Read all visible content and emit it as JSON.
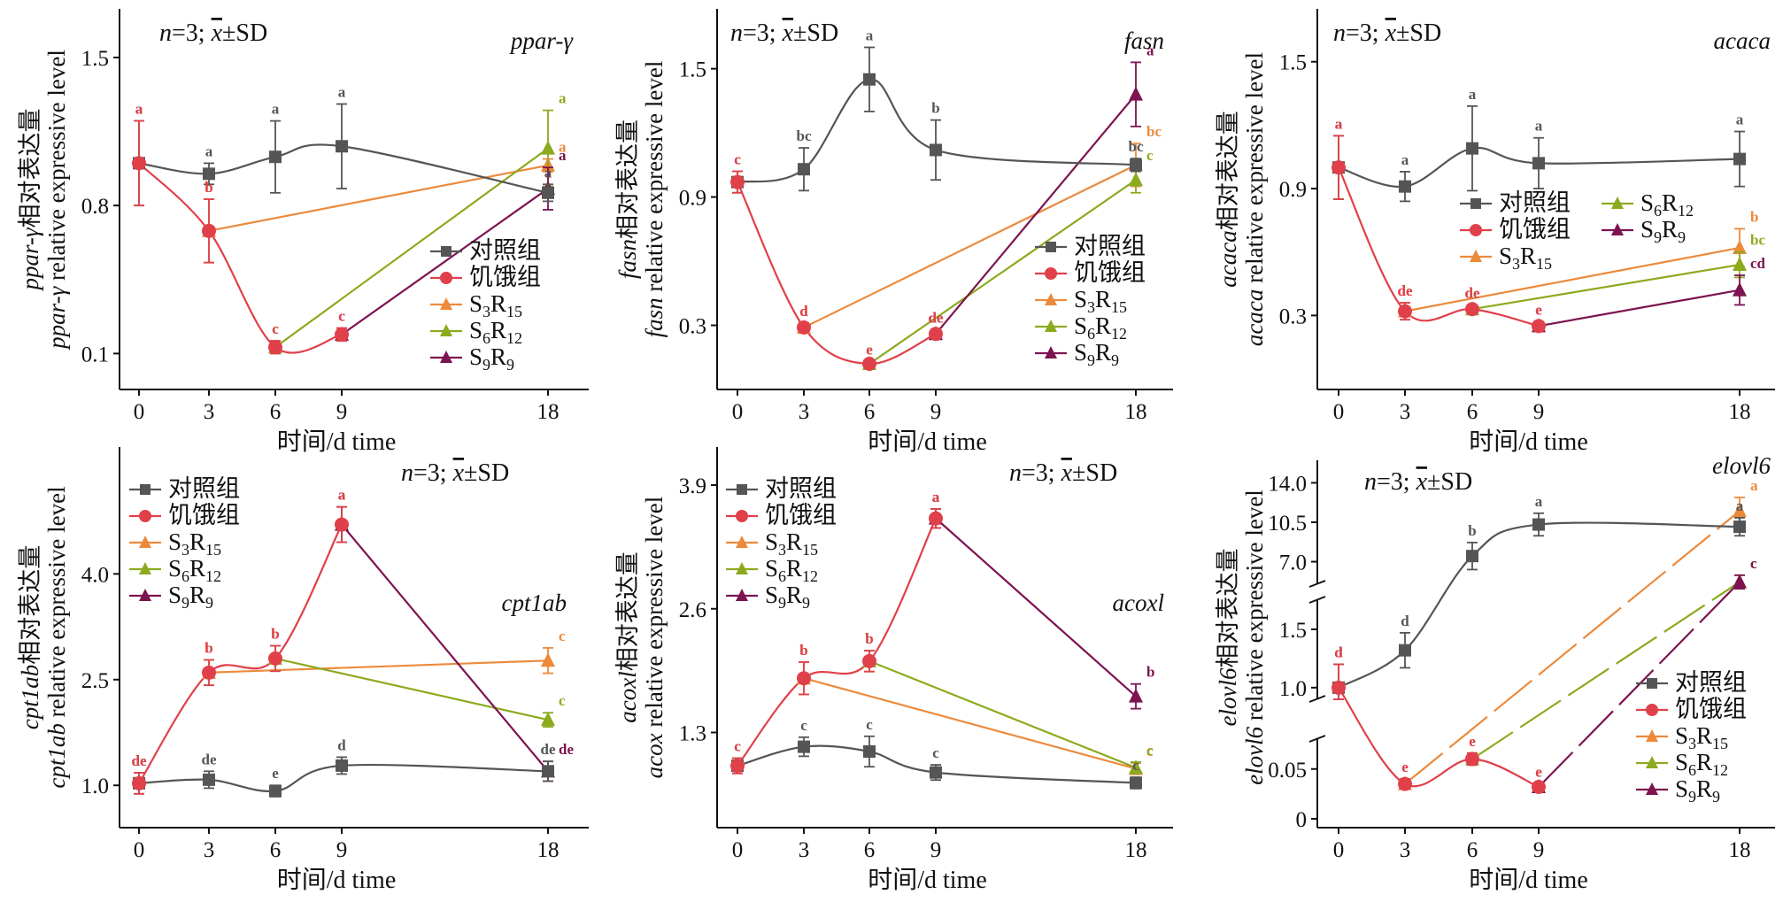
{
  "colors": {
    "control": "#555555",
    "starvation": "#e0404a",
    "S3R15": "#ec8a3c",
    "S6R12": "#8caa1e",
    "S9R9": "#7d1350"
  },
  "legend_labels": [
    {
      "text": "对照组"
    },
    {
      "text": "饥饿组"
    },
    {
      "base": "S",
      "sub1": "3",
      "mid": "R",
      "sub2": "15"
    },
    {
      "base": "S",
      "sub1": "6",
      "mid": "R",
      "sub2": "12"
    },
    {
      "base": "S",
      "sub1": "9",
      "mid": "R",
      "sub2": "9"
    }
  ],
  "stat_text": {
    "n": "n",
    "eq": "=3; ",
    "xbar": "x",
    "rest": "±SD"
  },
  "x_axis": {
    "title": "时间/d time",
    "ticks": [
      "0",
      "3",
      "6",
      "9",
      "18"
    ]
  },
  "chart_data": [
    {
      "type": "line",
      "gene": "ppar-γ",
      "ylabel_cn": "ppar-γ相对表达量",
      "ylabel_en": "ppar-γ relative expressive level",
      "x": [
        0,
        3,
        6,
        9,
        18
      ],
      "ylim": [
        -0.07,
        1.73
      ],
      "yticks": [
        "0.1",
        "0.8",
        "1.5"
      ],
      "series": [
        {
          "name": "对照组",
          "x": [
            0,
            3,
            6,
            9,
            18
          ],
          "y": [
            1.0,
            0.95,
            1.03,
            1.08,
            0.86
          ],
          "err": [
            0.2,
            0.05,
            0.17,
            0.2,
            0.04
          ],
          "sig": [
            "a",
            "a",
            "a",
            "a",
            "a"
          ]
        },
        {
          "name": "饥饿组",
          "x": [
            0,
            3,
            6,
            9
          ],
          "y": [
            1.0,
            0.68,
            0.13,
            0.19
          ],
          "err": [
            0.2,
            0.15,
            0.03,
            0.03
          ],
          "sig": [
            "a",
            "b",
            "c",
            "c"
          ]
        },
        {
          "name": "S3R15",
          "x": [
            3,
            18
          ],
          "y": [
            0.68,
            0.99
          ],
          "err": [
            0.15,
            0.03
          ],
          "sig": [
            "b",
            "a"
          ]
        },
        {
          "name": "S6R12",
          "x": [
            6,
            18
          ],
          "y": [
            0.13,
            1.07
          ],
          "err": [
            0.03,
            0.18
          ],
          "sig": [
            "c",
            "a"
          ]
        },
        {
          "name": "S9R9",
          "x": [
            9,
            18
          ],
          "y": [
            0.19,
            0.88
          ],
          "err": [
            0.03,
            0.1
          ],
          "sig": [
            "c",
            "a"
          ]
        }
      ]
    },
    {
      "type": "line",
      "gene": "fasn",
      "ylabel_cn": "fasn相对表达量",
      "ylabel_en": "fasn relative expressive level",
      "x": [
        0,
        3,
        6,
        9,
        18
      ],
      "ylim": [
        0.0,
        1.78
      ],
      "yticks": [
        "0.3",
        "0.9",
        "1.5"
      ],
      "series": [
        {
          "name": "对照组",
          "x": [
            0,
            3,
            6,
            9,
            18
          ],
          "y": [
            0.97,
            1.03,
            1.45,
            1.12,
            1.05
          ],
          "err": [
            0.05,
            0.1,
            0.15,
            0.14,
            0.03
          ],
          "sig": [
            "c",
            "bc",
            "a",
            "b",
            "bc"
          ]
        },
        {
          "name": "饥饿组",
          "x": [
            0,
            3,
            6,
            9
          ],
          "y": [
            0.97,
            0.29,
            0.12,
            0.26
          ],
          "err": [
            0.05,
            0.02,
            0.01,
            0.02
          ],
          "sig": [
            "c",
            "d",
            "e",
            "de"
          ]
        },
        {
          "name": "S3R15",
          "x": [
            3,
            18
          ],
          "y": [
            0.29,
            1.05
          ],
          "err": [
            0.02,
            0.1
          ],
          "sig": [
            "d",
            "bc"
          ]
        },
        {
          "name": "S6R12",
          "x": [
            6,
            18
          ],
          "y": [
            0.12,
            0.98
          ],
          "err": [
            0.01,
            0.06
          ],
          "sig": [
            "e",
            "c"
          ]
        },
        {
          "name": "S9R9",
          "x": [
            9,
            18
          ],
          "y": [
            0.26,
            1.38
          ],
          "err": [
            0.02,
            0.15
          ],
          "sig": [
            "de",
            "a"
          ]
        }
      ]
    },
    {
      "type": "line",
      "gene": "acaca",
      "ylabel_cn": "acaca相对表达量",
      "ylabel_en": "acaca relative expressive level",
      "x": [
        0,
        3,
        6,
        9,
        18
      ],
      "ylim": [
        -0.05,
        1.75
      ],
      "yticks": [
        "0.3",
        "0.9",
        "1.5"
      ],
      "series": [
        {
          "name": "对照组",
          "x": [
            0,
            3,
            6,
            9,
            18
          ],
          "y": [
            1.0,
            0.91,
            1.09,
            1.02,
            1.04
          ],
          "err": [
            0.15,
            0.07,
            0.2,
            0.12,
            0.13
          ],
          "sig": [
            "a",
            "a",
            "a",
            "a",
            "a"
          ]
        },
        {
          "name": "饥饿组",
          "x": [
            0,
            3,
            6,
            9
          ],
          "y": [
            1.0,
            0.32,
            0.33,
            0.25
          ],
          "err": [
            0.15,
            0.04,
            0.02,
            0.02
          ],
          "sig": [
            "a",
            "de",
            "de",
            "e"
          ]
        },
        {
          "name": "S3R15",
          "x": [
            3,
            18
          ],
          "y": [
            0.32,
            0.62
          ],
          "err": [
            0.04,
            0.09
          ],
          "sig": [
            "de",
            "b"
          ]
        },
        {
          "name": "S6R12",
          "x": [
            6,
            18
          ],
          "y": [
            0.33,
            0.54
          ],
          "err": [
            0.02,
            0.06
          ],
          "sig": [
            "de",
            "bc"
          ]
        },
        {
          "name": "S9R9",
          "x": [
            9,
            18
          ],
          "y": [
            0.25,
            0.42
          ],
          "err": [
            0.02,
            0.07
          ],
          "sig": [
            "e",
            "cd"
          ]
        }
      ]
    },
    {
      "type": "line",
      "gene": "cpt1ab",
      "ylabel_cn": "cpt1ab相对表达量",
      "ylabel_en": "cpt1ab relative expressive level",
      "x": [
        0,
        3,
        6,
        9,
        18
      ],
      "ylim": [
        0.4,
        5.8
      ],
      "yticks": [
        "1.0",
        "2.5",
        "4.0"
      ],
      "series": [
        {
          "name": "对照组",
          "x": [
            0,
            3,
            6,
            9,
            18
          ],
          "y": [
            1.03,
            1.08,
            0.92,
            1.28,
            1.2
          ],
          "err": [
            0.15,
            0.12,
            0.08,
            0.12,
            0.14
          ],
          "sig": [
            "de",
            "de",
            "e",
            "d",
            "de"
          ]
        },
        {
          "name": "饥饿组",
          "x": [
            0,
            3,
            6,
            9
          ],
          "y": [
            1.03,
            2.6,
            2.8,
            4.7
          ],
          "err": [
            0.15,
            0.18,
            0.18,
            0.25
          ],
          "sig": [
            "de",
            "b",
            "b",
            "a"
          ]
        },
        {
          "name": "S3R15",
          "x": [
            3,
            18
          ],
          "y": [
            2.6,
            2.77
          ],
          "err": [
            0.18,
            0.18
          ],
          "sig": [
            "b",
            "c"
          ]
        },
        {
          "name": "S6R12",
          "x": [
            6,
            18
          ],
          "y": [
            2.8,
            1.93
          ],
          "err": [
            0.18,
            0.1
          ],
          "sig": [
            "b",
            "c"
          ]
        },
        {
          "name": "S9R9",
          "x": [
            9,
            18
          ],
          "y": [
            4.7,
            1.2
          ],
          "err": [
            0.25,
            0.14
          ],
          "sig": [
            "a",
            "de"
          ]
        }
      ]
    },
    {
      "type": "line",
      "gene": "acoxl",
      "ylabel_cn": "acoxl相对表达量",
      "ylabel_en": "acox relative expressive level",
      "x": [
        0,
        3,
        6,
        9,
        18
      ],
      "ylim": [
        0.3,
        4.3
      ],
      "yticks": [
        "1.3",
        "2.6",
        "3.9"
      ],
      "series": [
        {
          "name": "对照组",
          "x": [
            0,
            3,
            6,
            9,
            18
          ],
          "y": [
            0.95,
            1.15,
            1.1,
            0.88,
            0.77
          ],
          "err": [
            0.08,
            0.1,
            0.16,
            0.08,
            0.06
          ],
          "sig": [
            "c",
            "c",
            "c",
            "c",
            "c"
          ]
        },
        {
          "name": "饥饿组",
          "x": [
            0,
            3,
            6,
            9
          ],
          "y": [
            0.95,
            1.87,
            2.05,
            3.55
          ],
          "err": [
            0.08,
            0.17,
            0.11,
            0.1
          ],
          "sig": [
            "c",
            "b",
            "b",
            "a"
          ]
        },
        {
          "name": "S3R15",
          "x": [
            3,
            18
          ],
          "y": [
            1.87,
            0.92
          ],
          "err": [
            0.17,
            0.06
          ],
          "sig": [
            "b",
            "c"
          ]
        },
        {
          "name": "S6R12",
          "x": [
            6,
            18
          ],
          "y": [
            2.05,
            0.93
          ],
          "err": [
            0.11,
            0.06
          ],
          "sig": [
            "b",
            "c"
          ]
        },
        {
          "name": "S9R9",
          "x": [
            9,
            18
          ],
          "y": [
            3.55,
            1.68
          ],
          "err": [
            0.1,
            0.13
          ],
          "sig": [
            "a",
            "b"
          ]
        }
      ]
    },
    {
      "type": "line",
      "gene": "elovl6",
      "ylabel_cn": "elovl6相对表达量",
      "ylabel_en": "elovl6 relative expressive level",
      "x": [
        0,
        3,
        6,
        9,
        18
      ],
      "scale": "broken",
      "ylim": [
        0,
        16.0
      ],
      "yticks": [
        "0",
        "0.05",
        "1.0",
        "1.5",
        "7.0",
        "10.5",
        "14.0"
      ],
      "series": [
        {
          "name": "对照组",
          "x": [
            0,
            3,
            6,
            9,
            18
          ],
          "y": [
            1.0,
            1.32,
            7.5,
            10.3,
            10.1
          ],
          "err": [
            0.2,
            0.15,
            1.2,
            1.0,
            0.8
          ],
          "sig": [
            "d",
            "d",
            "b",
            "a",
            "a"
          ]
        },
        {
          "name": "饥饿组",
          "x": [
            0,
            3,
            6,
            9
          ],
          "y": [
            1.0,
            0.035,
            0.06,
            0.032
          ],
          "err": [
            0.2,
            0.005,
            0.006,
            0.003
          ],
          "sig": [
            "d",
            "e",
            "e",
            "e"
          ]
        },
        {
          "name": "S3R15",
          "x": [
            3,
            18
          ],
          "y": [
            0.035,
            11.5
          ],
          "err": [
            0.005,
            1.2
          ],
          "sig": [
            "e",
            "a"
          ]
        },
        {
          "name": "S6R12",
          "x": [
            6,
            18
          ],
          "y": [
            0.06,
            5.2
          ],
          "err": [
            0.006,
            0.6
          ],
          "sig": [
            "e",
            "c"
          ]
        },
        {
          "name": "S9R9",
          "x": [
            9,
            18
          ],
          "y": [
            0.032,
            5.2
          ],
          "err": [
            0.003,
            0.6
          ],
          "sig": [
            "e",
            "c"
          ]
        }
      ]
    }
  ]
}
